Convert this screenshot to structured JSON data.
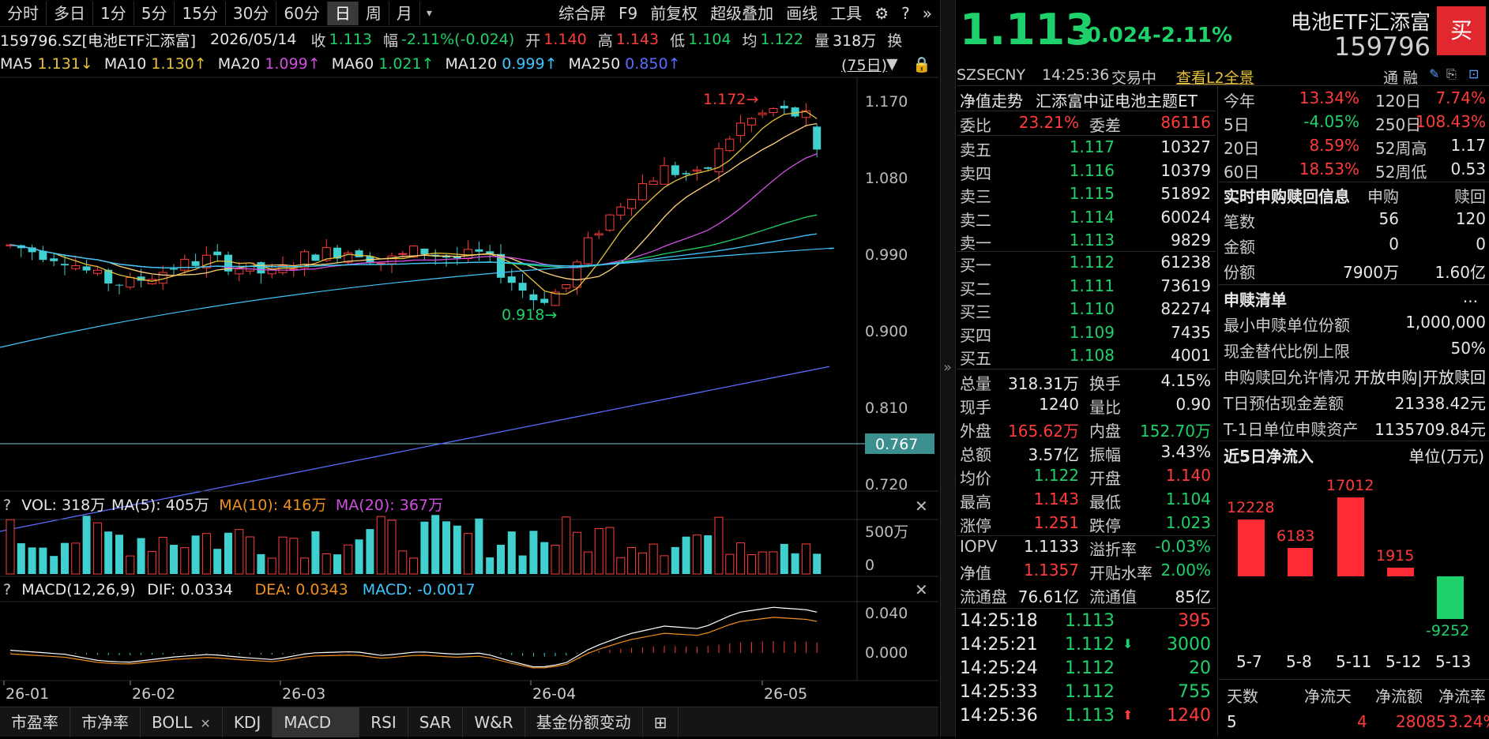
{
  "period_tabs": [
    "分时",
    "多日",
    "1分",
    "5分",
    "15分",
    "30分",
    "60分",
    "日",
    "周",
    "月"
  ],
  "toolbar_buttons": [
    "综合屏",
    "F9",
    "前复权",
    "超级叠加",
    "画线",
    "工具"
  ],
  "info1": {
    "code": "159796.SZ[电池ETF汇添富]",
    "date": "2026/05/14",
    "close_label": "收",
    "close": "1.113",
    "amp_label": "幅",
    "amp": "-2.11%(-0.024)",
    "open_label": "开",
    "open": "1.140",
    "high_label": "高",
    "high": "1.143",
    "low_label": "低",
    "low": "1.104",
    "avg_label": "均",
    "avg": "1.122",
    "vol_label": "量",
    "vol": "318万",
    "extra": "换"
  },
  "ma_line": [
    {
      "label": "MA5",
      "value": "1.131↓",
      "color": "#e8c13a"
    },
    {
      "label": "MA10",
      "value": "1.130↑",
      "color": "#e8c13a"
    },
    {
      "label": "MA20",
      "value": "1.099↑",
      "color": "#d04fe0"
    },
    {
      "label": "MA60",
      "value": "1.021↑",
      "color": "#1fd16a"
    },
    {
      "label": "MA120",
      "value": "0.999↑",
      "color": "#3fc6ff"
    },
    {
      "label": "MA250",
      "value": "0.850↑",
      "color": "#5a6cff"
    }
  ],
  "range_label": "(75日)",
  "chart_data": {
    "type": "candlestick",
    "price_ticks": [
      "1.170",
      "1.080",
      "0.990",
      "0.900",
      "0.810",
      "0.720"
    ],
    "current_price_tag": "0.767",
    "high_marker": "1.172",
    "low_marker": "0.918",
    "x_ticks": [
      "26-01",
      "26-02",
      "26-03",
      "26-04",
      "26-05"
    ],
    "vol_ticks": [
      "500万",
      "0"
    ],
    "macd_ticks": [
      "0.040",
      "0.000"
    ]
  },
  "vol_header": {
    "q": "?",
    "text": "VOL: 318万",
    "ma5": "MA(5): 405万",
    "ma10": "MA(10): 416万",
    "ma20": "MA(20): 367万"
  },
  "macd_header": {
    "q": "?",
    "text": "MACD(12,26,9)",
    "dif": "DIF: 0.0334",
    "dea": "DEA: 0.0343",
    "macd": "MACD: -0.0017"
  },
  "bottom_tabs": [
    "市盈率",
    "市净率",
    "BOLL",
    "KDJ",
    "MACD",
    "RSI",
    "SAR",
    "W&R",
    "基金份额变动"
  ],
  "right": {
    "price": "1.113",
    "change": "-0.024",
    "pct": "-2.11%",
    "name": "电池ETF汇添富",
    "code": "159796",
    "buy_btn": "买",
    "market": "SZSE",
    "currency": "CNY",
    "time": "14:25:36",
    "status": "交易中",
    "l2": "查看L2全景",
    "tong": "通",
    "rong": "融",
    "nav_trend": "净值走势",
    "fund_full": "汇添富中证电池主题ET",
    "weibi_label": "委比",
    "weibi": "23.21%",
    "weicha_label": "委差",
    "weicha": "86116",
    "asks": [
      {
        "l": "卖五",
        "p": "1.117",
        "v": "10327"
      },
      {
        "l": "卖四",
        "p": "1.116",
        "v": "10379"
      },
      {
        "l": "卖三",
        "p": "1.115",
        "v": "51892"
      },
      {
        "l": "卖二",
        "p": "1.114",
        "v": "60024"
      },
      {
        "l": "卖一",
        "p": "1.113",
        "v": "9829"
      }
    ],
    "bids": [
      {
        "l": "买一",
        "p": "1.112",
        "v": "61238"
      },
      {
        "l": "买二",
        "p": "1.111",
        "v": "73619"
      },
      {
        "l": "买三",
        "p": "1.110",
        "v": "82274"
      },
      {
        "l": "买四",
        "p": "1.109",
        "v": "7435"
      },
      {
        "l": "买五",
        "p": "1.108",
        "v": "4001"
      }
    ],
    "stats": [
      [
        "总量",
        "318.31万",
        "换手",
        "4.15%"
      ],
      [
        "现手",
        "1240",
        "量比",
        "0.90"
      ],
      [
        "外盘",
        "165.62万",
        "内盘",
        "152.70万"
      ],
      [
        "总额",
        "3.57亿",
        "振幅",
        "3.43%"
      ],
      [
        "均价",
        "1.122",
        "开盘",
        "1.140"
      ],
      [
        "最高",
        "1.143",
        "最低",
        "1.104"
      ],
      [
        "涨停",
        "1.251",
        "跌停",
        "1.023"
      ],
      [
        "IOPV",
        "1.1133",
        "溢折率",
        "-0.03%"
      ],
      [
        "净值",
        "1.1357",
        "开贴水率",
        "2.00%"
      ],
      [
        "流通盘",
        "76.61亿",
        "流通值",
        "85亿"
      ]
    ],
    "ticks": [
      {
        "t": "14:25:18",
        "p": "1.113",
        "v": "395",
        "arrow": ""
      },
      {
        "t": "14:25:21",
        "p": "1.112",
        "v": "3000",
        "arrow": "⬇"
      },
      {
        "t": "14:25:24",
        "p": "1.112",
        "v": "20",
        "arrow": ""
      },
      {
        "t": "14:25:33",
        "p": "1.112",
        "v": "755",
        "arrow": ""
      },
      {
        "t": "14:25:36",
        "p": "1.113",
        "v": "1240",
        "arrow": "⬆"
      }
    ],
    "perf": [
      [
        "今年",
        "13.34%",
        "120日",
        "7.74%"
      ],
      [
        "5日",
        "-4.05%",
        "250日",
        "108.43%"
      ],
      [
        "20日",
        "8.59%",
        "52周高",
        "1.17"
      ],
      [
        "60日",
        "18.53%",
        "52周低",
        "0.53"
      ]
    ],
    "sub_title": "实时申购赎回信息",
    "sub_h1": "申购",
    "sub_h2": "赎回",
    "sub_rows": [
      [
        "笔数",
        "56",
        "120"
      ],
      [
        "金额",
        "0",
        "0"
      ],
      [
        "份额",
        "7900万",
        "1.60亿"
      ]
    ],
    "list_title": "申赎清单",
    "list_more": "...",
    "list_rows": [
      [
        "最小申赎单位份额",
        "1,000,000"
      ],
      [
        "现金替代比例上限",
        "50%"
      ],
      [
        "申购赎回允许情况",
        "开放申购|开放赎回"
      ],
      [
        "T日预估现金差额",
        "21338.42元"
      ],
      [
        "T-1日单位申赎资产",
        "1135709.84元"
      ]
    ],
    "flow_title": "近5日净流入",
    "flow_unit": "单位(万元)",
    "flow": [
      {
        "d": "5-7",
        "v": 12228
      },
      {
        "d": "5-8",
        "v": 6183
      },
      {
        "d": "5-11",
        "v": 17012
      },
      {
        "d": "5-12",
        "v": 1915
      },
      {
        "d": "5-13",
        "v": -9252
      }
    ],
    "foot_h": [
      "天数",
      "净流天",
      "净流额",
      "净流率"
    ],
    "foot_v": [
      "5",
      "4",
      "28085",
      "3.24%"
    ]
  }
}
